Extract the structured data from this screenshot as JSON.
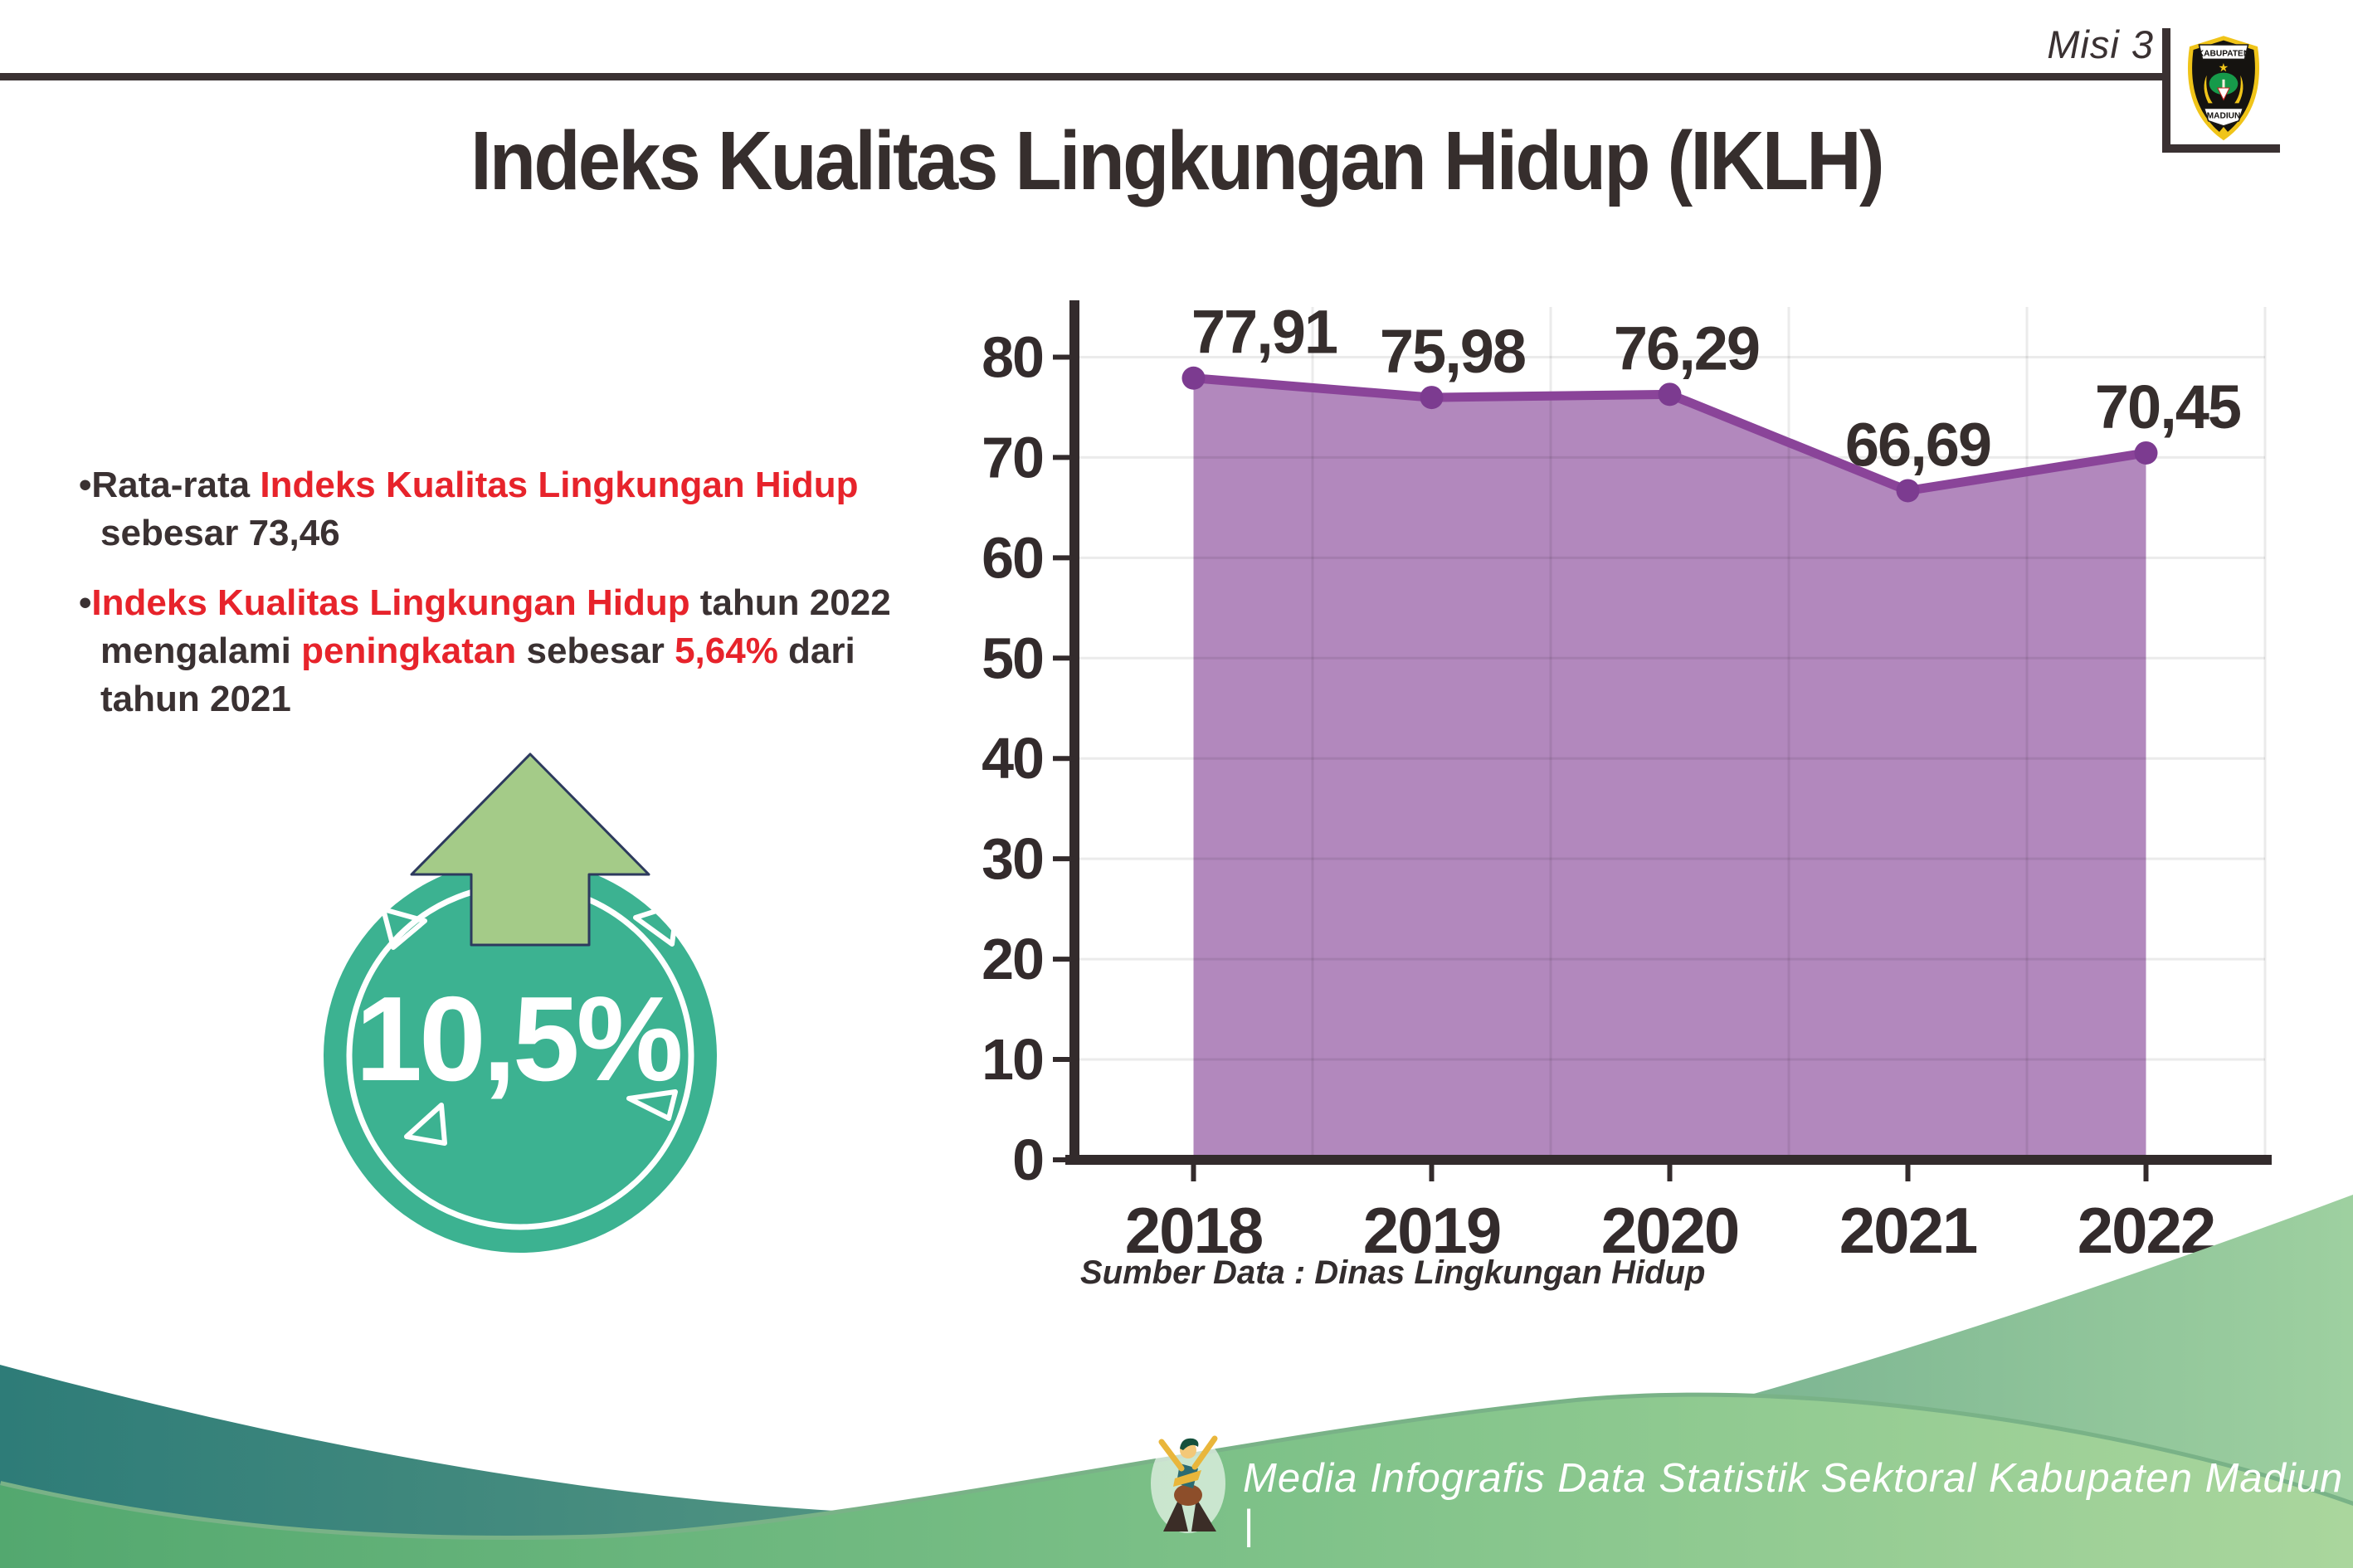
{
  "header": {
    "misi_label": "Misi 3",
    "crest_top": "KABUPATEN",
    "crest_bottom": "MADIUN"
  },
  "title": "Indeks Kualitas Lingkungan Hidup (IKLH)",
  "bullets": [
    {
      "segments": [
        {
          "text": "•Rata-rata ",
          "color": "dark"
        },
        {
          "text": "Indeks Kualitas Lingkungan Hidup",
          "color": "red"
        },
        {
          "text": " sebesar 73,46",
          "color": "dark"
        }
      ]
    },
    {
      "segments": [
        {
          "text": "•",
          "color": "dark"
        },
        {
          "text": "Indeks Kualitas Lingkungan Hidup",
          "color": "red"
        },
        {
          "text": " tahun 2022 mengalami ",
          "color": "dark"
        },
        {
          "text": "peningkatan",
          "color": "red"
        },
        {
          "text": " sebesar ",
          "color": "dark"
        },
        {
          "text": "5,64%",
          "color": "red"
        },
        {
          "text": " dari tahun 2021",
          "color": "dark"
        }
      ]
    }
  ],
  "badge": {
    "value": "10,5%"
  },
  "chart_data": {
    "type": "area",
    "title": "",
    "categories": [
      "2018",
      "2019",
      "2020",
      "2021",
      "2022"
    ],
    "values": [
      77.91,
      75.98,
      76.29,
      66.69,
      70.45
    ],
    "point_labels": [
      "77,91",
      "75,98",
      "76,29",
      "66,69",
      "70,45"
    ],
    "ylim": [
      0,
      85
    ],
    "yticks": [
      0,
      10,
      20,
      30,
      40,
      50,
      60,
      70,
      80
    ],
    "grid": true,
    "legend": false,
    "xlabel": "",
    "ylabel": "",
    "colors": {
      "area": "#b288bd",
      "line": "#8a4499",
      "marker": "#7c3b90",
      "label": "#362e2d",
      "axis": "#332b2c",
      "grid": "rgba(0,0,0,0.08)"
    },
    "source_note": "Sumber Data : Dinas Lingkungan Hidup"
  },
  "footer": {
    "credit": "Media Infografis Data Statistik Sektoral Kabupaten Madiun |"
  },
  "colors": {
    "accent_red": "#e7232b",
    "text_dark": "#3a3132",
    "badge_teal": "#3cb291",
    "arrow_green": "#a4cb88",
    "crest_yellow": "#f0c419"
  }
}
